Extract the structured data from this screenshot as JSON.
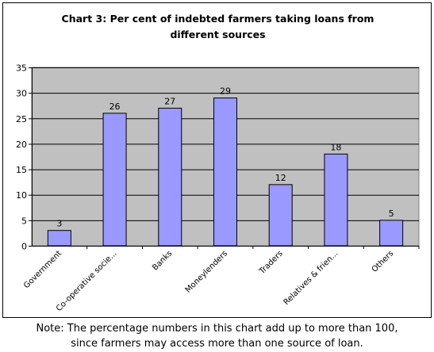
{
  "chart_data": {
    "type": "bar",
    "title_lines": [
      "Chart 3: Per cent of indebted farmers taking loans from",
      "different sources"
    ],
    "categories": [
      "Government",
      "Co-operative socie...",
      "Banks",
      "Moneylenders",
      "Traders",
      "Relatives & frien...",
      "Others"
    ],
    "values": [
      3,
      26,
      27,
      29,
      12,
      18,
      5
    ],
    "ylim": [
      0,
      35
    ],
    "yticks": [
      0,
      5,
      10,
      15,
      20,
      25,
      30,
      35
    ],
    "data_labels": true,
    "grid": true,
    "legend": "none",
    "colors": {
      "bar": "#9999ff",
      "plot_bg": "#c0c0c0"
    }
  },
  "note": {
    "line1": "Note: The percentage numbers in this chart add up to more than 100,",
    "line2": "since farmers may access more than one source of loan."
  }
}
